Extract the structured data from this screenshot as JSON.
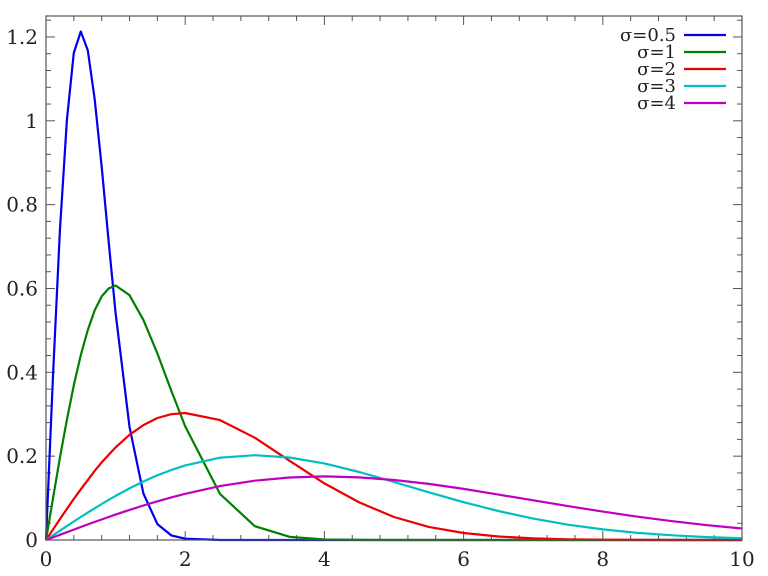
{
  "chart_data": {
    "type": "line",
    "title": "",
    "xlabel": "",
    "ylabel": "",
    "xlim": [
      0,
      10
    ],
    "ylim": [
      0,
      1.25
    ],
    "grid": false,
    "legend_position": "top-right",
    "x_ticks": [
      "0",
      "2",
      "4",
      "6",
      "8",
      "10"
    ],
    "y_ticks": [
      "0",
      "0.2",
      "0.4",
      "0.6",
      "0.8",
      "1",
      "1.2"
    ],
    "x": [
      0,
      0.1,
      0.2,
      0.3,
      0.4,
      0.5,
      0.6,
      0.7,
      0.8,
      0.9,
      1.0,
      1.2,
      1.4,
      1.6,
      1.8,
      2.0,
      2.5,
      3,
      3.5,
      4,
      4.5,
      5,
      5.5,
      6,
      6.5,
      7,
      7.5,
      8,
      8.5,
      9,
      9.5,
      10
    ],
    "series": [
      {
        "name": "σ=0.5",
        "color": "#0000ee",
        "values": [
          0,
          0.392,
          0.738,
          1.002,
          1.162,
          1.213,
          1.168,
          1.051,
          0.89,
          0.713,
          0.541,
          0.27,
          0.111,
          0.038,
          0.011,
          0.003,
          0,
          0,
          0,
          0,
          0,
          0,
          0,
          0,
          0,
          0,
          0,
          0,
          0,
          0,
          0,
          0
        ]
      },
      {
        "name": "σ=1",
        "color": "#008000",
        "values": [
          0,
          0.0995,
          0.196,
          0.287,
          0.369,
          0.441,
          0.501,
          0.548,
          0.581,
          0.6,
          0.607,
          0.584,
          0.525,
          0.445,
          0.356,
          0.271,
          0.11,
          0.033,
          0.0077,
          0.0013,
          0.0002,
          0,
          0,
          0,
          0,
          0,
          0,
          0,
          0,
          0,
          0,
          0
        ]
      },
      {
        "name": "σ=2",
        "color": "#ee0000",
        "values": [
          0,
          0.025,
          0.0498,
          0.0742,
          0.098,
          0.121,
          0.143,
          0.165,
          0.185,
          0.203,
          0.221,
          0.251,
          0.274,
          0.291,
          0.3,
          0.303,
          0.286,
          0.244,
          0.189,
          0.135,
          0.0896,
          0.0549,
          0.0313,
          0.0167,
          0.0083,
          0.0038,
          0.0017,
          0.0007,
          0.0003,
          0.0001,
          0,
          0
        ]
      },
      {
        "name": "σ=3",
        "color": "#00bfbf",
        "values": [
          0,
          0.0111,
          0.0222,
          0.0332,
          0.0441,
          0.0548,
          0.0654,
          0.0757,
          0.0858,
          0.0956,
          0.1051,
          0.1231,
          0.1395,
          0.1543,
          0.167,
          0.178,
          0.1964,
          0.2022,
          0.1968,
          0.1827,
          0.1623,
          0.1384,
          0.1139,
          0.0902,
          0.0691,
          0.0511,
          0.0366,
          0.0253,
          0.017,
          0.0111,
          0.007,
          0.0043
        ]
      },
      {
        "name": "σ=4",
        "color": "#bf00bf",
        "values": [
          0,
          0.0063,
          0.0125,
          0.0187,
          0.0249,
          0.031,
          0.0371,
          0.0431,
          0.049,
          0.0548,
          0.0606,
          0.0717,
          0.0823,
          0.0923,
          0.1017,
          0.1103,
          0.1285,
          0.1415,
          0.1492,
          0.1516,
          0.1494,
          0.1431,
          0.1338,
          0.1218,
          0.1084,
          0.0946,
          0.0808,
          0.0677,
          0.0556,
          0.0448,
          0.0354,
          0.0274
        ]
      }
    ]
  }
}
